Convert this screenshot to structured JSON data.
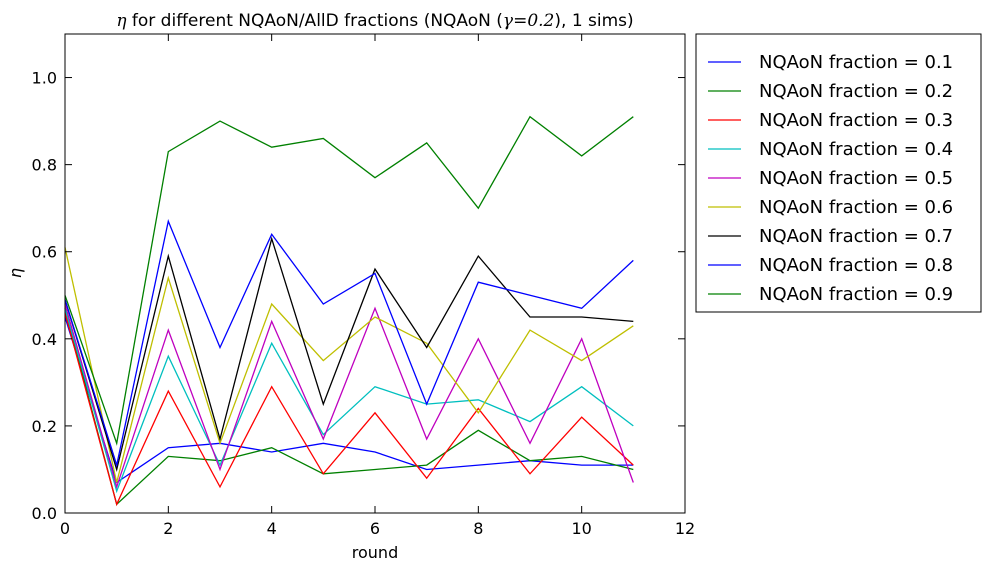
{
  "chart_data": {
    "type": "line",
    "title_symbol": "η",
    "title_text": " for different NQAoN/AllD fractions (NQAoN (",
    "title_gamma": "γ=0.2",
    "title_suffix": "), 1 sims)",
    "xlabel": "round",
    "ylabel": "η",
    "xlim": [
      0,
      12
    ],
    "ylim": [
      0,
      1.1
    ],
    "xticks": [
      0,
      2,
      4,
      6,
      8,
      10,
      12
    ],
    "xtick_labels": [
      "0",
      "2",
      "4",
      "6",
      "8",
      "10",
      "12"
    ],
    "yticks": [
      0.0,
      0.2,
      0.4,
      0.6,
      0.8,
      1.0
    ],
    "ytick_labels": [
      "0.0",
      "0.2",
      "0.4",
      "0.6",
      "0.8",
      "1.0"
    ],
    "grid": false,
    "legend_position": "outside-right",
    "x": [
      0,
      1,
      2,
      3,
      4,
      5,
      6,
      7,
      8,
      9,
      10,
      11
    ],
    "series": [
      {
        "name": "NQAoN fraction = 0.1",
        "color": "#0000ff",
        "values": [
          0.45,
          0.07,
          0.15,
          0.16,
          0.14,
          0.16,
          0.14,
          0.1,
          0.11,
          0.12,
          0.11,
          0.11
        ]
      },
      {
        "name": "NQAoN fraction = 0.2",
        "color": "#008000",
        "values": [
          0.47,
          0.02,
          0.13,
          0.12,
          0.15,
          0.09,
          0.1,
          0.11,
          0.19,
          0.12,
          0.13,
          0.1
        ]
      },
      {
        "name": "NQAoN fraction = 0.3",
        "color": "#ff0000",
        "values": [
          0.46,
          0.02,
          0.28,
          0.06,
          0.29,
          0.09,
          0.23,
          0.08,
          0.24,
          0.09,
          0.22,
          0.11
        ]
      },
      {
        "name": "NQAoN fraction = 0.4",
        "color": "#00bfbf",
        "values": [
          0.47,
          0.05,
          0.36,
          0.11,
          0.39,
          0.18,
          0.29,
          0.25,
          0.26,
          0.21,
          0.29,
          0.2
        ]
      },
      {
        "name": "NQAoN fraction = 0.5",
        "color": "#bf00bf",
        "values": [
          0.48,
          0.06,
          0.42,
          0.1,
          0.44,
          0.17,
          0.47,
          0.17,
          0.4,
          0.16,
          0.4,
          0.07
        ]
      },
      {
        "name": "NQAoN fraction = 0.6",
        "color": "#bfbf00",
        "values": [
          0.61,
          0.07,
          0.54,
          0.16,
          0.48,
          0.35,
          0.45,
          0.39,
          0.23,
          0.42,
          0.35,
          0.43
        ]
      },
      {
        "name": "NQAoN fraction = 0.7",
        "color": "#000000",
        "values": [
          0.49,
          0.1,
          0.59,
          0.17,
          0.63,
          0.25,
          0.56,
          0.38,
          0.59,
          0.45,
          0.45,
          0.44
        ]
      },
      {
        "name": "NQAoN fraction = 0.8",
        "color": "#0000ff",
        "values": [
          0.49,
          0.11,
          0.67,
          0.38,
          0.64,
          0.48,
          0.55,
          0.25,
          0.53,
          0.5,
          0.47,
          0.58
        ]
      },
      {
        "name": "NQAoN fraction = 0.9",
        "color": "#008000",
        "values": [
          0.5,
          0.16,
          0.83,
          0.9,
          0.84,
          0.86,
          0.77,
          0.85,
          0.7,
          0.91,
          0.82,
          0.91
        ]
      }
    ]
  }
}
